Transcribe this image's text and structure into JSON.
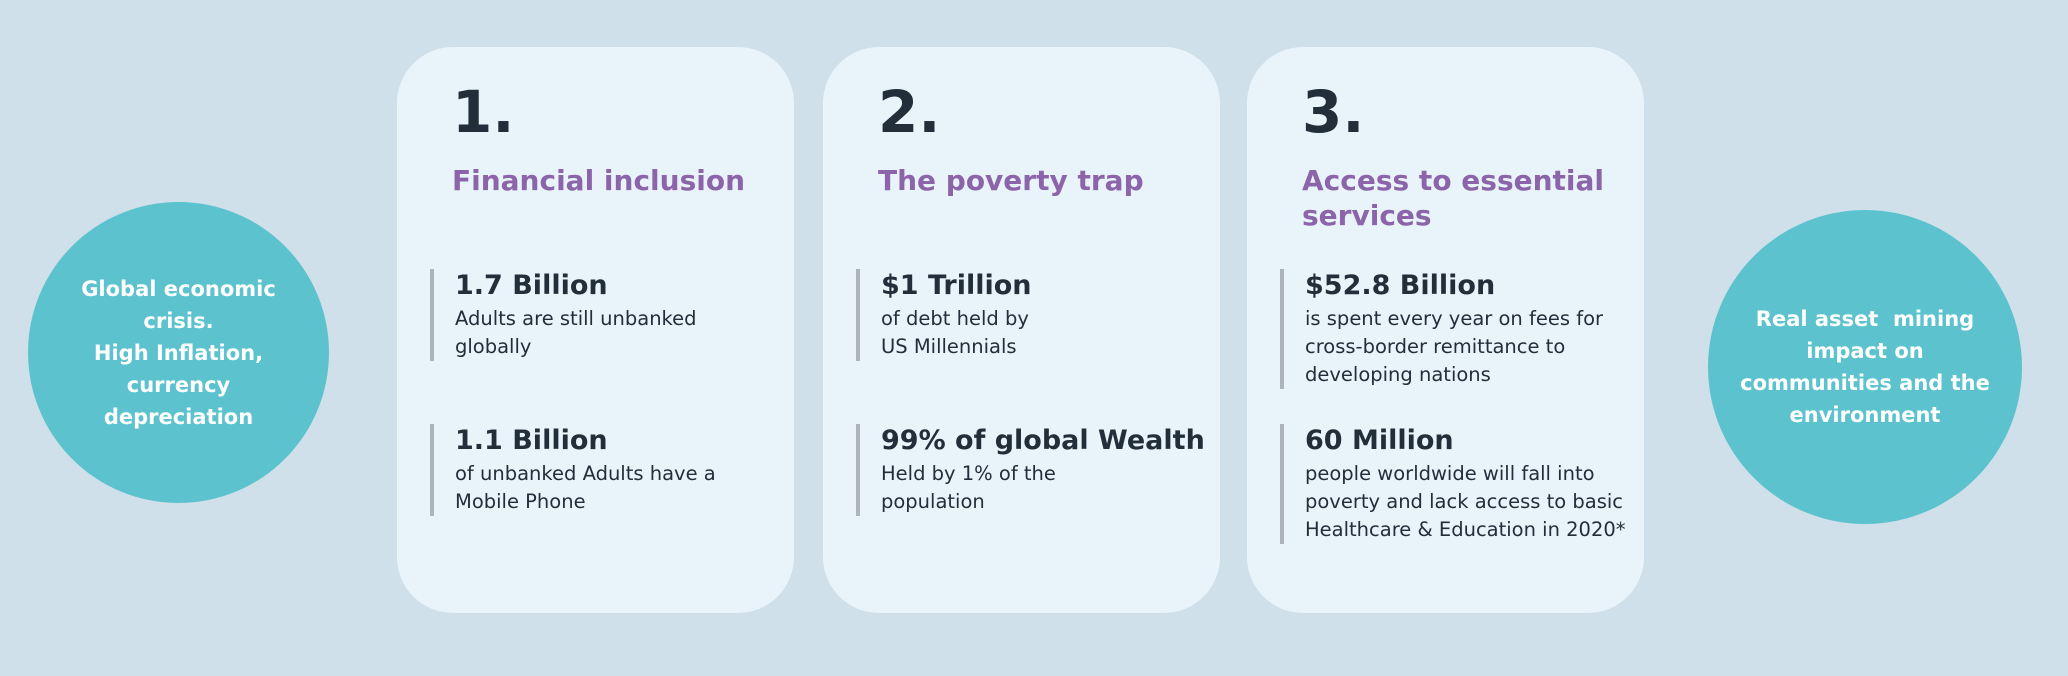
{
  "colors": {
    "background": "#CFE0EB",
    "card_background": "#E9F3FA",
    "circle_teal": "#5CC3CE",
    "heading_purple": "#8B64A9",
    "text_dark": "#222E3A",
    "stat_bar_gray": "#ADB4BA",
    "circle_text_white": "#FFFFFF"
  },
  "left_circle": {
    "text": "Global economic\ncrisis.\nHigh Inflation,\ncurrency\ndepreciation"
  },
  "right_circle": {
    "text": "Real asset  mining\nimpact on\ncommunities and the\nenvironment"
  },
  "cards": [
    {
      "number": "1.",
      "title": "Financial inclusion",
      "stats": [
        {
          "value": "1.7 Billion",
          "description": "Adults are still unbanked\nglobally"
        },
        {
          "value": "1.1 Billion",
          "description": "of unbanked Adults have a\nMobile Phone"
        }
      ]
    },
    {
      "number": "2.",
      "title": "The poverty trap",
      "stats": [
        {
          "value": "$1 Trillion",
          "description": "of debt held by\nUS Millennials"
        },
        {
          "value": "99% of global Wealth",
          "description": "Held by 1% of the\npopulation"
        }
      ]
    },
    {
      "number": "3.",
      "title": "Access to essential services",
      "stats": [
        {
          "value": "$52.8 Billion",
          "description": "is spent every year on fees for\ncross-border remittance to\ndeveloping nations"
        },
        {
          "value": "60 Million",
          "description": "people worldwide will fall into\npoverty and lack access to basic\nHealthcare & Education in 2020*"
        }
      ]
    }
  ]
}
